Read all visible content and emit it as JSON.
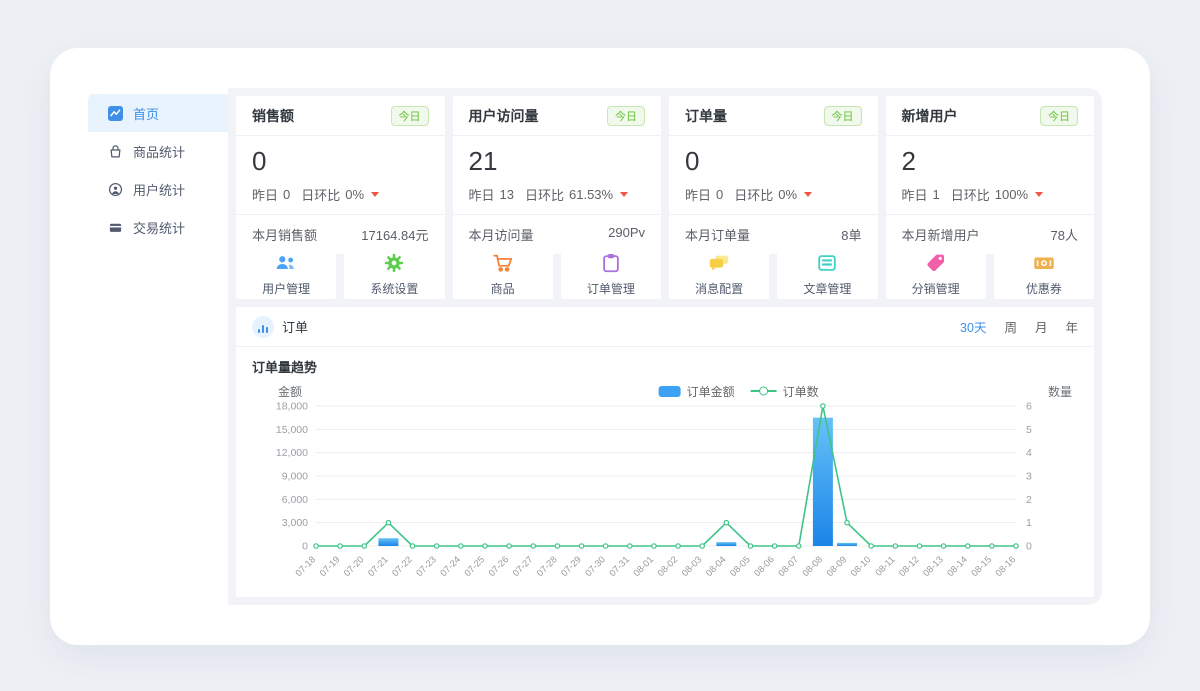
{
  "sidebar": {
    "items": [
      {
        "label": "首页",
        "active": true
      },
      {
        "label": "商品统计",
        "active": false
      },
      {
        "label": "用户统计",
        "active": false
      },
      {
        "label": "交易统计",
        "active": false
      }
    ]
  },
  "stat_cards": [
    {
      "title": "销售额",
      "badge": "今日",
      "value": "0",
      "yesterday_label": "昨日",
      "yesterday_value": "0",
      "ratio_label": "日环比",
      "ratio_value": "0%",
      "footer_label": "本月销售额",
      "footer_value": "17164.84元"
    },
    {
      "title": "用户访问量",
      "badge": "今日",
      "value": "21",
      "yesterday_label": "昨日",
      "yesterday_value": "13",
      "ratio_label": "日环比",
      "ratio_value": "61.53%",
      "footer_label": "本月访问量",
      "footer_value": "290Pv"
    },
    {
      "title": "订单量",
      "badge": "今日",
      "value": "0",
      "yesterday_label": "昨日",
      "yesterday_value": "0",
      "ratio_label": "日环比",
      "ratio_value": "0%",
      "footer_label": "本月订单量",
      "footer_value": "8单"
    },
    {
      "title": "新增用户",
      "badge": "今日",
      "value": "2",
      "yesterday_label": "昨日",
      "yesterday_value": "1",
      "ratio_label": "日环比",
      "ratio_value": "100%",
      "footer_label": "本月新增用户",
      "footer_value": "78人"
    }
  ],
  "shortcuts": [
    {
      "label": "用户管理",
      "color": "#4da3f5"
    },
    {
      "label": "系统设置",
      "color": "#5ecc4e"
    },
    {
      "label": "商品",
      "color": "#f5823a"
    },
    {
      "label": "订单管理",
      "color": "#ab6fe0"
    },
    {
      "label": "消息配置",
      "color": "#f6cf45"
    },
    {
      "label": "文章管理",
      "color": "#41d0c5"
    },
    {
      "label": "分销管理",
      "color": "#f05fa8"
    },
    {
      "label": "优惠券",
      "color": "#efb14d"
    }
  ],
  "chart_panel": {
    "title": "订单",
    "tabs": [
      {
        "label": "30天",
        "active": true
      },
      {
        "label": "周",
        "active": false
      },
      {
        "label": "月",
        "active": false
      },
      {
        "label": "年",
        "active": false
      }
    ]
  },
  "chart_data": {
    "type": "bar",
    "title": "订单量趋势",
    "left_axis": {
      "label": "金额",
      "max": 18000,
      "ticks": [
        "18,000",
        "15,000",
        "12,000",
        "9,000",
        "6,000",
        "3,000",
        "0"
      ]
    },
    "right_axis": {
      "label": "数量",
      "max": 6,
      "ticks": [
        "6",
        "5",
        "4",
        "3",
        "2",
        "1",
        "0"
      ]
    },
    "categories": [
      "07-18",
      "07-19",
      "07-20",
      "07-21",
      "07-22",
      "07-23",
      "07-24",
      "07-25",
      "07-26",
      "07-27",
      "07-28",
      "07-29",
      "07-30",
      "07-31",
      "08-01",
      "08-02",
      "08-03",
      "08-04",
      "08-05",
      "08-06",
      "08-07",
      "08-08",
      "08-09",
      "08-10",
      "08-11",
      "08-12",
      "08-13",
      "08-14",
      "08-15",
      "08-16"
    ],
    "series": [
      {
        "name": "订单金额",
        "type": "bar",
        "axis": "left",
        "color_top": "#66c2f7",
        "color_bottom": "#1b84e7",
        "values": [
          0,
          0,
          0,
          1000,
          0,
          0,
          0,
          0,
          0,
          0,
          0,
          0,
          0,
          0,
          0,
          0,
          0,
          500,
          0,
          0,
          0,
          16500,
          400,
          0,
          0,
          0,
          0,
          0,
          0,
          0
        ]
      },
      {
        "name": "订单数",
        "type": "line",
        "axis": "right",
        "color": "#3fc488",
        "values": [
          0,
          0,
          0,
          1,
          0,
          0,
          0,
          0,
          0,
          0,
          0,
          0,
          0,
          0,
          0,
          0,
          0,
          1,
          0,
          0,
          0,
          6,
          1,
          0,
          0,
          0,
          0,
          0,
          0,
          0
        ]
      }
    ],
    "grid": true,
    "legend_position": "top-center"
  }
}
